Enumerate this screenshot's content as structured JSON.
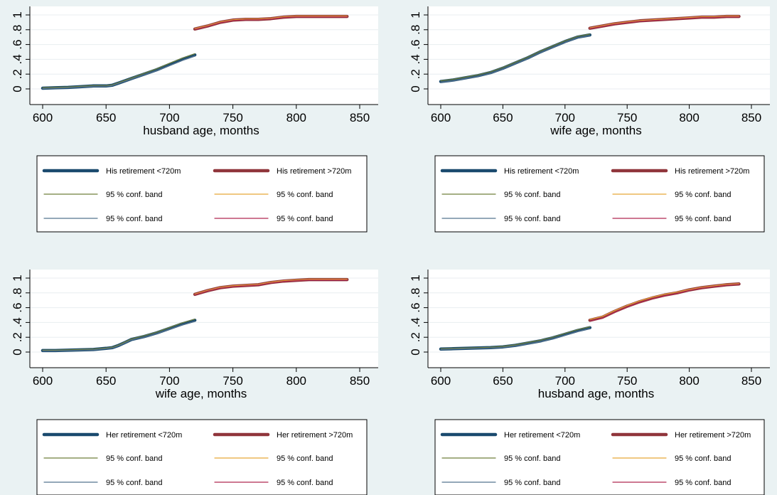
{
  "colors": {
    "background": "#eaf2f3",
    "plot_background": "#ffffff",
    "grid": "#e8eef0",
    "below_main": "#1a4a6e",
    "above_main": "#90353b",
    "below_upper": "#6f7f3a",
    "below_lower": "#55738f",
    "above_upper": "#e8a838",
    "above_lower": "#b02850"
  },
  "chart_data": [
    {
      "type": "line",
      "xlabel": "husband age, months",
      "ylabel": "",
      "xlim": [
        600,
        850
      ],
      "ylim": [
        0,
        1
      ],
      "x_ticks": [
        "600",
        "650",
        "700",
        "750",
        "800",
        "850"
      ],
      "y_ticks": [
        "0",
        ".2",
        ".4",
        ".6",
        ".8",
        "1"
      ],
      "grid": true,
      "legend_position": "bottom",
      "series": [
        {
          "name": "His retirement <720m",
          "role": "below_main",
          "x": [
            600,
            610,
            620,
            630,
            640,
            650,
            655,
            660,
            670,
            680,
            690,
            700,
            710,
            720
          ],
          "y": [
            0.01,
            0.015,
            0.02,
            0.03,
            0.04,
            0.04,
            0.05,
            0.08,
            0.14,
            0.2,
            0.26,
            0.33,
            0.4,
            0.46
          ]
        },
        {
          "name": "His retirement >720m",
          "role": "above_main",
          "x": [
            720,
            730,
            740,
            750,
            760,
            770,
            780,
            790,
            800,
            810,
            820,
            830,
            840
          ],
          "y": [
            0.81,
            0.85,
            0.9,
            0.93,
            0.94,
            0.94,
            0.95,
            0.97,
            0.98,
            0.98,
            0.98,
            0.98,
            0.98
          ]
        },
        {
          "name": "95 % conf. band",
          "role": "below_upper",
          "x": [
            600,
            610,
            620,
            630,
            640,
            650,
            655,
            660,
            670,
            680,
            690,
            700,
            710,
            720
          ],
          "y": [
            0.015,
            0.02,
            0.025,
            0.035,
            0.045,
            0.045,
            0.055,
            0.085,
            0.147,
            0.21,
            0.272,
            0.345,
            0.415,
            0.475
          ]
        },
        {
          "name": "95 % conf. band",
          "role": "above_upper",
          "x": [
            720,
            730,
            740,
            750,
            760,
            770,
            780,
            790,
            800,
            810,
            820,
            830,
            840
          ],
          "y": [
            0.815,
            0.855,
            0.905,
            0.935,
            0.945,
            0.945,
            0.955,
            0.975,
            0.985,
            0.985,
            0.985,
            0.985,
            0.985
          ]
        },
        {
          "name": "95 % conf. band",
          "role": "below_lower",
          "x": [
            600,
            610,
            620,
            630,
            640,
            650,
            655,
            660,
            670,
            680,
            690,
            700,
            710,
            720
          ],
          "y": [
            0.005,
            0.01,
            0.015,
            0.025,
            0.035,
            0.035,
            0.045,
            0.075,
            0.133,
            0.19,
            0.248,
            0.315,
            0.385,
            0.445
          ]
        },
        {
          "name": "95 % conf. band",
          "role": "above_lower",
          "x": [
            720,
            730,
            740,
            750,
            760,
            770,
            780,
            790,
            800,
            810,
            820,
            830,
            840
          ],
          "y": [
            0.805,
            0.845,
            0.895,
            0.925,
            0.935,
            0.935,
            0.945,
            0.965,
            0.975,
            0.975,
            0.975,
            0.975,
            0.975
          ]
        }
      ]
    },
    {
      "type": "line",
      "xlabel": "wife age, months",
      "ylabel": "",
      "xlim": [
        600,
        850
      ],
      "ylim": [
        0,
        1
      ],
      "x_ticks": [
        "600",
        "650",
        "700",
        "750",
        "800",
        "850"
      ],
      "y_ticks": [
        "0",
        ".2",
        ".4",
        ".6",
        ".8",
        "1"
      ],
      "grid": true,
      "legend_position": "bottom",
      "series": [
        {
          "name": "His retirement <720m",
          "role": "below_main",
          "x": [
            600,
            610,
            620,
            630,
            640,
            650,
            660,
            670,
            680,
            690,
            700,
            710,
            720
          ],
          "y": [
            0.1,
            0.12,
            0.15,
            0.18,
            0.22,
            0.28,
            0.35,
            0.42,
            0.5,
            0.57,
            0.64,
            0.7,
            0.73
          ]
        },
        {
          "name": "His retirement >720m",
          "role": "above_main",
          "x": [
            720,
            730,
            740,
            750,
            760,
            770,
            780,
            790,
            800,
            810,
            820,
            830,
            840
          ],
          "y": [
            0.82,
            0.85,
            0.88,
            0.9,
            0.92,
            0.93,
            0.94,
            0.95,
            0.96,
            0.97,
            0.97,
            0.98,
            0.98
          ]
        },
        {
          "name": "95 % conf. band",
          "role": "below_upper",
          "x": [
            600,
            610,
            620,
            630,
            640,
            650,
            660,
            670,
            680,
            690,
            700,
            710,
            720
          ],
          "y": [
            0.11,
            0.13,
            0.16,
            0.19,
            0.23,
            0.29,
            0.36,
            0.43,
            0.51,
            0.58,
            0.65,
            0.71,
            0.74
          ]
        },
        {
          "name": "95 % conf. band",
          "role": "above_upper",
          "x": [
            720,
            730,
            740,
            750,
            760,
            770,
            780,
            790,
            800,
            810,
            820,
            830,
            840
          ],
          "y": [
            0.825,
            0.855,
            0.885,
            0.905,
            0.925,
            0.935,
            0.945,
            0.955,
            0.965,
            0.975,
            0.975,
            0.985,
            0.985
          ]
        },
        {
          "name": "95 % conf. band",
          "role": "below_lower",
          "x": [
            600,
            610,
            620,
            630,
            640,
            650,
            660,
            670,
            680,
            690,
            700,
            710,
            720
          ],
          "y": [
            0.09,
            0.11,
            0.14,
            0.17,
            0.21,
            0.27,
            0.34,
            0.41,
            0.49,
            0.56,
            0.63,
            0.69,
            0.72
          ]
        },
        {
          "name": "95 % conf. band",
          "role": "above_lower",
          "x": [
            720,
            730,
            740,
            750,
            760,
            770,
            780,
            790,
            800,
            810,
            820,
            830,
            840
          ],
          "y": [
            0.815,
            0.845,
            0.875,
            0.895,
            0.915,
            0.925,
            0.935,
            0.945,
            0.955,
            0.965,
            0.965,
            0.975,
            0.975
          ]
        }
      ]
    },
    {
      "type": "line",
      "xlabel": "wife age, months",
      "ylabel": "",
      "xlim": [
        600,
        850
      ],
      "ylim": [
        0,
        1
      ],
      "x_ticks": [
        "600",
        "650",
        "700",
        "750",
        "800",
        "850"
      ],
      "y_ticks": [
        "0",
        ".2",
        ".4",
        ".6",
        ".8",
        "1"
      ],
      "grid": true,
      "legend_position": "bottom",
      "series": [
        {
          "name": "Her retirement <720m",
          "role": "below_main",
          "x": [
            600,
            610,
            620,
            630,
            640,
            650,
            655,
            660,
            665,
            670,
            680,
            690,
            700,
            710,
            720
          ],
          "y": [
            0.02,
            0.02,
            0.025,
            0.03,
            0.035,
            0.05,
            0.06,
            0.09,
            0.13,
            0.17,
            0.21,
            0.26,
            0.32,
            0.38,
            0.43
          ]
        },
        {
          "name": "Her retirement >720m",
          "role": "above_main",
          "x": [
            720,
            730,
            740,
            750,
            760,
            770,
            780,
            790,
            800,
            810,
            820,
            830,
            840
          ],
          "y": [
            0.78,
            0.83,
            0.87,
            0.89,
            0.9,
            0.91,
            0.94,
            0.96,
            0.97,
            0.98,
            0.98,
            0.98,
            0.98
          ]
        },
        {
          "name": "95 % conf. band",
          "role": "below_upper",
          "x": [
            600,
            610,
            620,
            630,
            640,
            650,
            655,
            660,
            665,
            670,
            680,
            690,
            700,
            710,
            720
          ],
          "y": [
            0.025,
            0.025,
            0.03,
            0.035,
            0.04,
            0.055,
            0.065,
            0.095,
            0.137,
            0.177,
            0.22,
            0.27,
            0.332,
            0.393,
            0.445
          ]
        },
        {
          "name": "95 % conf. band",
          "role": "above_upper",
          "x": [
            720,
            730,
            740,
            750,
            760,
            770,
            780,
            790,
            800,
            810,
            820,
            830,
            840
          ],
          "y": [
            0.785,
            0.835,
            0.875,
            0.895,
            0.905,
            0.915,
            0.945,
            0.965,
            0.975,
            0.985,
            0.985,
            0.985,
            0.985
          ]
        },
        {
          "name": "95 % conf. band",
          "role": "below_lower",
          "x": [
            600,
            610,
            620,
            630,
            640,
            650,
            655,
            660,
            665,
            670,
            680,
            690,
            700,
            710,
            720
          ],
          "y": [
            0.015,
            0.015,
            0.02,
            0.025,
            0.03,
            0.045,
            0.055,
            0.085,
            0.123,
            0.163,
            0.2,
            0.25,
            0.308,
            0.367,
            0.415
          ]
        },
        {
          "name": "95 % conf. band",
          "role": "above_lower",
          "x": [
            720,
            730,
            740,
            750,
            760,
            770,
            780,
            790,
            800,
            810,
            820,
            830,
            840
          ],
          "y": [
            0.775,
            0.825,
            0.865,
            0.885,
            0.895,
            0.905,
            0.935,
            0.955,
            0.965,
            0.975,
            0.975,
            0.975,
            0.975
          ]
        }
      ]
    },
    {
      "type": "line",
      "xlabel": "husband age, months",
      "ylabel": "",
      "xlim": [
        600,
        850
      ],
      "ylim": [
        0,
        1
      ],
      "x_ticks": [
        "600",
        "650",
        "700",
        "750",
        "800",
        "850"
      ],
      "y_ticks": [
        "0",
        ".2",
        ".4",
        ".6",
        ".8",
        "1"
      ],
      "grid": true,
      "legend_position": "bottom",
      "series": [
        {
          "name": "Her retirement <720m",
          "role": "below_main",
          "x": [
            600,
            610,
            620,
            630,
            640,
            650,
            660,
            670,
            680,
            690,
            700,
            710,
            720
          ],
          "y": [
            0.04,
            0.045,
            0.05,
            0.055,
            0.06,
            0.07,
            0.09,
            0.12,
            0.15,
            0.19,
            0.24,
            0.29,
            0.33
          ]
        },
        {
          "name": "Her retirement >720m",
          "role": "above_main",
          "x": [
            720,
            730,
            740,
            750,
            760,
            770,
            780,
            790,
            800,
            810,
            820,
            830,
            840
          ],
          "y": [
            0.43,
            0.47,
            0.55,
            0.62,
            0.68,
            0.73,
            0.77,
            0.8,
            0.84,
            0.87,
            0.89,
            0.91,
            0.92
          ]
        },
        {
          "name": "95 % conf. band",
          "role": "below_upper",
          "x": [
            600,
            610,
            620,
            630,
            640,
            650,
            660,
            670,
            680,
            690,
            700,
            710,
            720
          ],
          "y": [
            0.045,
            0.05,
            0.055,
            0.06,
            0.065,
            0.077,
            0.097,
            0.13,
            0.16,
            0.2,
            0.252,
            0.302,
            0.342
          ]
        },
        {
          "name": "95 % conf. band",
          "role": "above_upper",
          "x": [
            720,
            730,
            740,
            750,
            760,
            770,
            780,
            790,
            800,
            810,
            820,
            830,
            840
          ],
          "y": [
            0.44,
            0.48,
            0.56,
            0.63,
            0.69,
            0.74,
            0.78,
            0.81,
            0.845,
            0.875,
            0.895,
            0.915,
            0.925
          ]
        },
        {
          "name": "95 % conf. band",
          "role": "below_lower",
          "x": [
            600,
            610,
            620,
            630,
            640,
            650,
            660,
            670,
            680,
            690,
            700,
            710,
            720
          ],
          "y": [
            0.035,
            0.04,
            0.045,
            0.05,
            0.055,
            0.063,
            0.083,
            0.11,
            0.14,
            0.18,
            0.228,
            0.278,
            0.318
          ]
        },
        {
          "name": "95 % conf. band",
          "role": "above_lower",
          "x": [
            720,
            730,
            740,
            750,
            760,
            770,
            780,
            790,
            800,
            810,
            820,
            830,
            840
          ],
          "y": [
            0.42,
            0.46,
            0.54,
            0.61,
            0.67,
            0.72,
            0.76,
            0.79,
            0.835,
            0.865,
            0.885,
            0.905,
            0.915
          ]
        }
      ]
    }
  ]
}
